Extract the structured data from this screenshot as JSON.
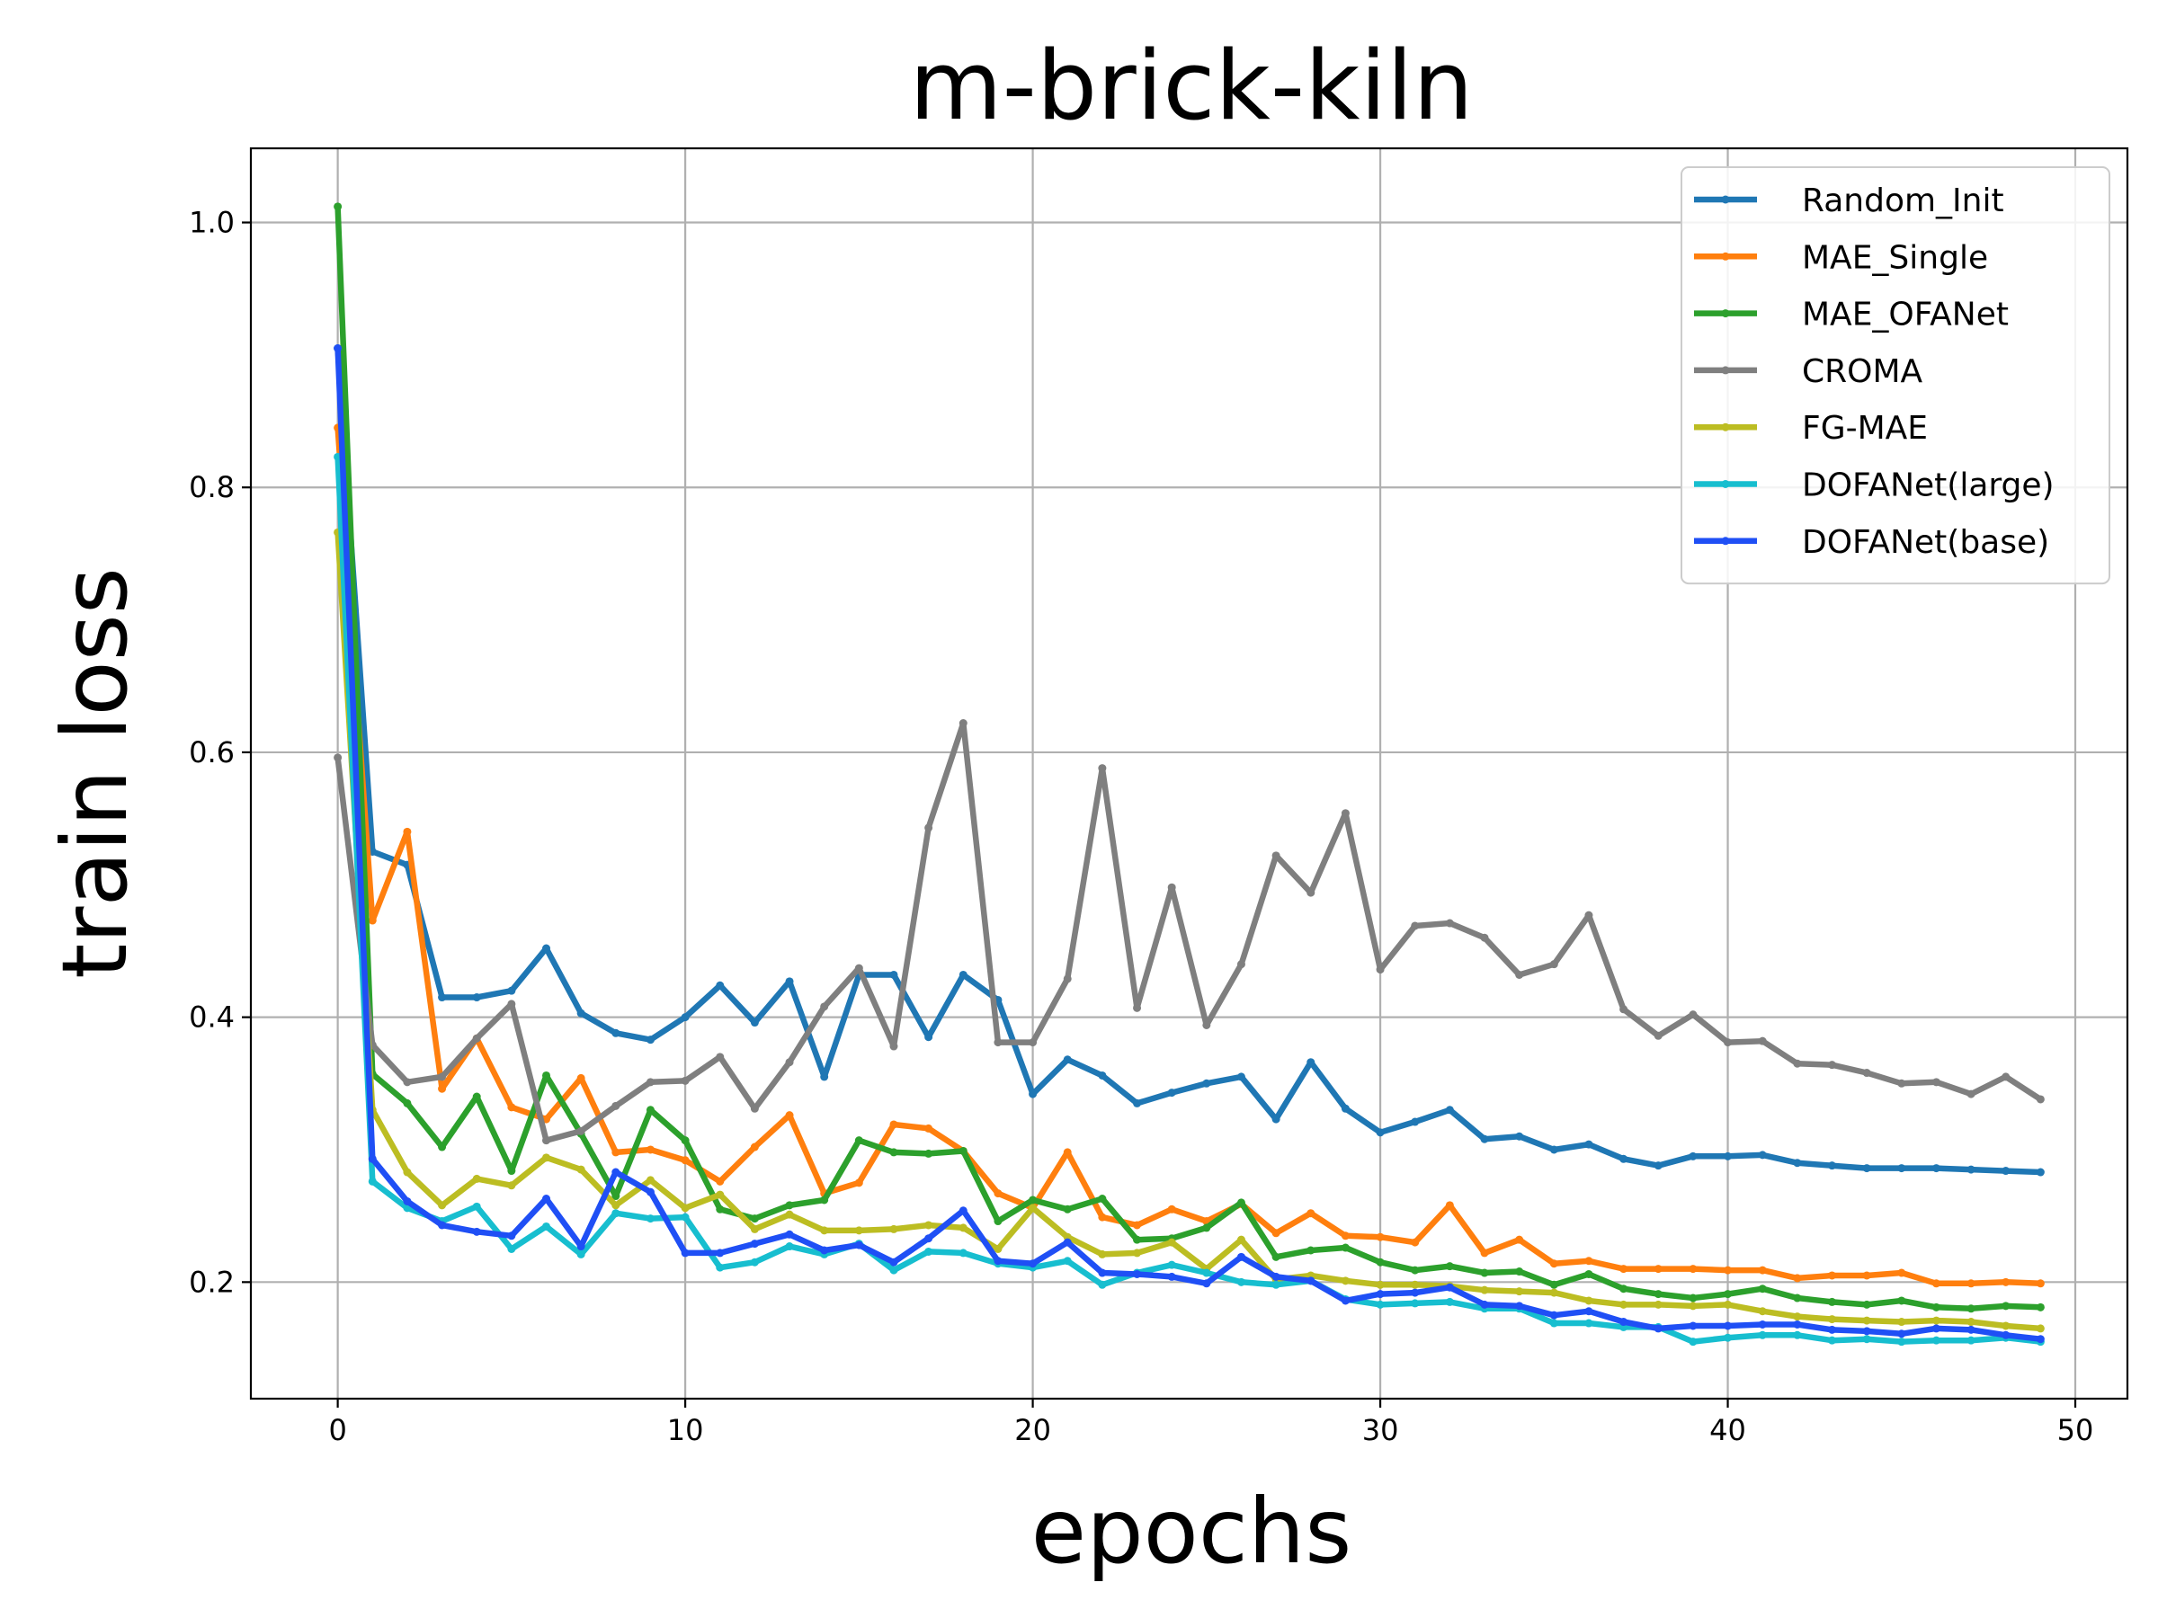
{
  "chart_data": {
    "type": "line",
    "title": "m-brick-kiln",
    "xlabel": "epochs",
    "ylabel": "train loss",
    "xlim": [
      -2.5,
      51.5
    ],
    "ylim": [
      0.112,
      1.056
    ],
    "xticks": [
      0,
      10,
      20,
      30,
      40,
      50
    ],
    "xtick_labels": [
      "0",
      "10",
      "20",
      "30",
      "40",
      "50"
    ],
    "yticks": [
      0.2,
      0.4,
      0.6,
      0.8,
      1.0
    ],
    "ytick_labels": [
      "0.2",
      "0.4",
      "0.6",
      "0.8",
      "1.0"
    ],
    "grid": true,
    "legend_position": "top-right",
    "x": [
      0,
      1,
      2,
      3,
      4,
      5,
      6,
      7,
      8,
      9,
      10,
      11,
      12,
      13,
      14,
      15,
      16,
      17,
      18,
      19,
      20,
      21,
      22,
      23,
      24,
      25,
      26,
      27,
      28,
      29,
      30,
      31,
      32,
      33,
      34,
      35,
      36,
      37,
      38,
      39,
      40,
      41,
      42,
      43,
      44,
      45,
      46,
      47,
      48,
      49
    ],
    "series": [
      {
        "name": "Random_Init",
        "color": "#1f77b4",
        "values": [
          0.905,
          0.525,
          0.515,
          0.415,
          0.415,
          0.42,
          0.452,
          0.403,
          0.388,
          0.383,
          0.4,
          0.424,
          0.396,
          0.427,
          0.355,
          0.432,
          0.432,
          0.385,
          0.432,
          0.413,
          0.342,
          0.368,
          0.356,
          0.335,
          0.343,
          0.35,
          0.355,
          0.323,
          0.366,
          0.331,
          0.313,
          0.321,
          0.33,
          0.308,
          0.31,
          0.3,
          0.304,
          0.293,
          0.288,
          0.295,
          0.295,
          0.296,
          0.29,
          0.288,
          0.286,
          0.286,
          0.286,
          0.285,
          0.284,
          0.283
        ]
      },
      {
        "name": "MAE_Single",
        "color": "#ff7f0e",
        "values": [
          0.845,
          0.473,
          0.54,
          0.346,
          0.384,
          0.332,
          0.323,
          0.354,
          0.298,
          0.3,
          0.292,
          0.276,
          0.302,
          0.326,
          0.267,
          0.275,
          0.319,
          0.316,
          0.299,
          0.267,
          0.256,
          0.298,
          0.249,
          0.243,
          0.255,
          0.246,
          0.259,
          0.237,
          0.252,
          0.235,
          0.234,
          0.23,
          0.258,
          0.222,
          0.232,
          0.214,
          0.216,
          0.21,
          0.21,
          0.21,
          0.209,
          0.209,
          0.203,
          0.205,
          0.205,
          0.207,
          0.199,
          0.199,
          0.2,
          0.199
        ]
      },
      {
        "name": "MAE_OFANet",
        "color": "#2ca02c",
        "values": [
          1.012,
          0.357,
          0.335,
          0.302,
          0.34,
          0.284,
          0.356,
          0.312,
          0.265,
          0.33,
          0.307,
          0.255,
          0.248,
          0.258,
          0.262,
          0.307,
          0.298,
          0.297,
          0.299,
          0.246,
          0.262,
          0.255,
          0.263,
          0.232,
          0.233,
          0.241,
          0.26,
          0.219,
          0.224,
          0.226,
          0.215,
          0.209,
          0.212,
          0.207,
          0.208,
          0.198,
          0.206,
          0.195,
          0.191,
          0.188,
          0.191,
          0.195,
          0.188,
          0.185,
          0.183,
          0.186,
          0.181,
          0.18,
          0.182,
          0.181
        ]
      },
      {
        "name": "CROMA",
        "color": "#7f7f7f",
        "values": [
          0.596,
          0.379,
          0.351,
          0.355,
          0.384,
          0.41,
          0.307,
          0.314,
          0.333,
          0.351,
          0.352,
          0.37,
          0.331,
          0.366,
          0.408,
          0.437,
          0.378,
          0.543,
          0.622,
          0.381,
          0.381,
          0.429,
          0.588,
          0.407,
          0.498,
          0.394,
          0.44,
          0.522,
          0.494,
          0.554,
          0.436,
          0.469,
          0.471,
          0.46,
          0.432,
          0.44,
          0.477,
          0.406,
          0.386,
          0.402,
          0.381,
          0.382,
          0.365,
          0.364,
          0.358,
          0.35,
          0.351,
          0.342,
          0.355,
          0.338
        ]
      },
      {
        "name": "FG-MAE",
        "color": "#bcbd22",
        "values": [
          0.766,
          0.33,
          0.283,
          0.258,
          0.278,
          0.273,
          0.294,
          0.285,
          0.258,
          0.277,
          0.256,
          0.266,
          0.24,
          0.251,
          0.239,
          0.239,
          0.24,
          0.243,
          0.241,
          0.225,
          0.256,
          0.234,
          0.221,
          0.222,
          0.23,
          0.21,
          0.232,
          0.202,
          0.205,
          0.201,
          0.198,
          0.198,
          0.197,
          0.194,
          0.193,
          0.192,
          0.186,
          0.183,
          0.183,
          0.182,
          0.183,
          0.178,
          0.174,
          0.172,
          0.171,
          0.17,
          0.171,
          0.17,
          0.167,
          0.165
        ]
      },
      {
        "name": "DOFANet(large)",
        "color": "#17becf",
        "values": [
          0.823,
          0.276,
          0.256,
          0.246,
          0.257,
          0.225,
          0.242,
          0.221,
          0.252,
          0.248,
          0.249,
          0.211,
          0.215,
          0.227,
          0.221,
          0.229,
          0.209,
          0.223,
          0.222,
          0.214,
          0.211,
          0.216,
          0.198,
          0.207,
          0.213,
          0.207,
          0.2,
          0.198,
          0.201,
          0.187,
          0.183,
          0.184,
          0.185,
          0.18,
          0.18,
          0.169,
          0.169,
          0.166,
          0.166,
          0.155,
          0.158,
          0.16,
          0.16,
          0.156,
          0.157,
          0.155,
          0.156,
          0.156,
          0.158,
          0.155
        ]
      },
      {
        "name": "DOFANet(base)",
        "color": "#1f4ff5",
        "values": [
          0.905,
          0.293,
          0.261,
          0.243,
          0.238,
          0.235,
          0.263,
          0.227,
          0.283,
          0.268,
          0.222,
          0.222,
          0.229,
          0.236,
          0.224,
          0.228,
          0.215,
          0.233,
          0.254,
          0.216,
          0.214,
          0.23,
          0.207,
          0.206,
          0.204,
          0.199,
          0.219,
          0.204,
          0.201,
          0.186,
          0.191,
          0.192,
          0.196,
          0.183,
          0.182,
          0.175,
          0.178,
          0.17,
          0.165,
          0.167,
          0.167,
          0.168,
          0.168,
          0.164,
          0.163,
          0.161,
          0.165,
          0.164,
          0.16,
          0.157
        ]
      }
    ]
  }
}
